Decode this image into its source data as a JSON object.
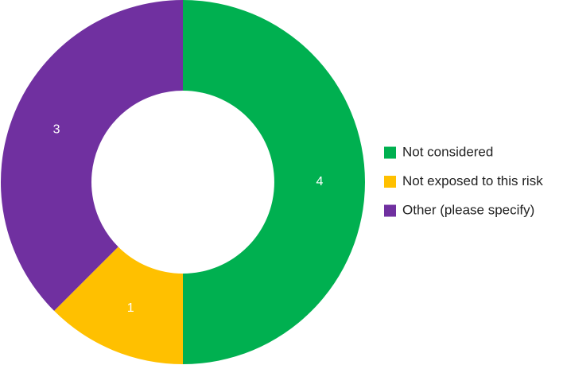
{
  "chart_data": {
    "type": "donut",
    "categories": [
      "Not considered",
      "Not exposed to this risk",
      "Other (please specify)"
    ],
    "values": [
      4,
      1,
      3
    ],
    "colors": [
      "#00b050",
      "#ffc000",
      "#7030a0"
    ],
    "legend": "right"
  }
}
